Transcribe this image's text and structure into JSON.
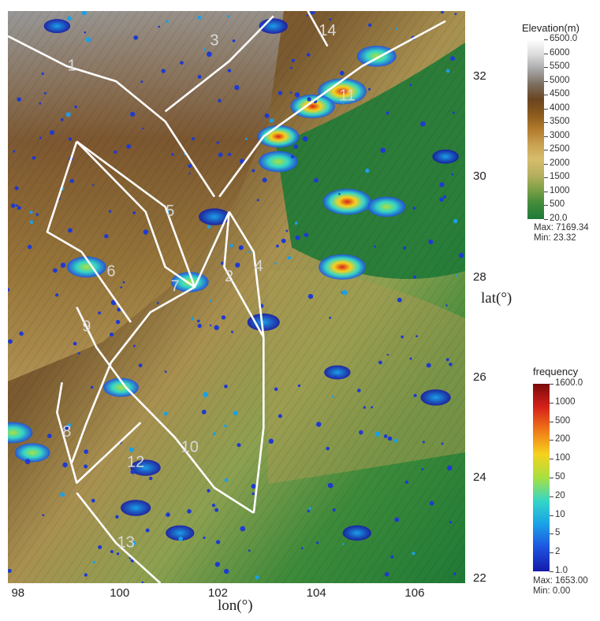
{
  "map": {
    "lon_range": [
      97.8,
      107.1
    ],
    "lat_range": [
      21.9,
      33.3
    ],
    "zones": [
      {
        "id": "1",
        "label": "1",
        "lon": 99.1,
        "lat": 32.2
      },
      {
        "id": "2",
        "label": "2",
        "lon": 102.3,
        "lat": 28.0
      },
      {
        "id": "3",
        "label": "3",
        "lon": 102.0,
        "lat": 32.7
      },
      {
        "id": "4",
        "label": "4",
        "lon": 102.9,
        "lat": 28.2
      },
      {
        "id": "5",
        "label": "5",
        "lon": 101.1,
        "lat": 29.3
      },
      {
        "id": "6",
        "label": "6",
        "lon": 99.9,
        "lat": 28.1
      },
      {
        "id": "7",
        "label": "7",
        "lon": 101.2,
        "lat": 27.8
      },
      {
        "id": "8",
        "label": "8",
        "lon": 99.0,
        "lat": 24.9
      },
      {
        "id": "9",
        "label": "9",
        "lon": 99.4,
        "lat": 27.0
      },
      {
        "id": "10",
        "label": "10",
        "lon": 101.5,
        "lat": 24.6
      },
      {
        "id": "11",
        "label": "11",
        "lon": 104.7,
        "lat": 31.6
      },
      {
        "id": "12",
        "label": "12",
        "lon": 100.4,
        "lat": 24.3
      },
      {
        "id": "13",
        "label": "13",
        "lon": 100.2,
        "lat": 22.7
      },
      {
        "id": "14",
        "label": "14",
        "lon": 104.3,
        "lat": 32.9
      }
    ],
    "faults": [
      [
        [
          97.8,
          32.8
        ],
        [
          99.0,
          32.2
        ],
        [
          100.0,
          31.9
        ],
        [
          101.0,
          31.1
        ],
        [
          102.0,
          29.6
        ]
      ],
      [
        [
          101.0,
          31.3
        ],
        [
          102.3,
          32.3
        ],
        [
          103.2,
          33.2
        ]
      ],
      [
        [
          103.9,
          33.3
        ],
        [
          104.3,
          32.6
        ]
      ],
      [
        [
          102.1,
          29.6
        ],
        [
          103.0,
          30.8
        ],
        [
          104.0,
          31.5
        ],
        [
          105.0,
          32.2
        ],
        [
          106.7,
          33.1
        ]
      ],
      [
        [
          99.2,
          30.7
        ],
        [
          98.6,
          28.9
        ],
        [
          99.3,
          28.5
        ],
        [
          100.3,
          27.1
        ]
      ],
      [
        [
          99.2,
          30.7
        ],
        [
          101.0,
          29.4
        ],
        [
          101.6,
          27.8
        ]
      ],
      [
        [
          99.2,
          30.7
        ],
        [
          100.6,
          29.3
        ],
        [
          101.0,
          28.2
        ],
        [
          101.6,
          27.8
        ]
      ],
      [
        [
          102.3,
          29.3
        ],
        [
          101.6,
          27.8
        ],
        [
          100.7,
          27.3
        ],
        [
          99.9,
          26.3
        ],
        [
          99.4,
          25.1
        ],
        [
          99.1,
          24.3
        ]
      ],
      [
        [
          102.3,
          29.3
        ],
        [
          102.2,
          28.2
        ],
        [
          103.0,
          26.8
        ],
        [
          103.0,
          25.0
        ],
        [
          102.8,
          23.3
        ]
      ],
      [
        [
          102.3,
          29.3
        ],
        [
          102.8,
          28.5
        ],
        [
          103.0,
          26.8
        ]
      ],
      [
        [
          99.2,
          27.4
        ],
        [
          99.6,
          26.6
        ],
        [
          100.2,
          25.8
        ],
        [
          101.2,
          24.8
        ],
        [
          102.0,
          23.8
        ],
        [
          102.8,
          23.3
        ]
      ],
      [
        [
          98.9,
          25.9
        ],
        [
          98.8,
          25.3
        ],
        [
          99.2,
          23.9
        ],
        [
          100.5,
          25.1
        ]
      ],
      [
        [
          99.2,
          23.7
        ],
        [
          100.0,
          22.7
        ],
        [
          100.9,
          21.9
        ]
      ]
    ],
    "seismic_clusters": [
      {
        "lon": 104.6,
        "lat": 31.7,
        "freq": 1000
      },
      {
        "lon": 104.0,
        "lat": 31.4,
        "freq": 500
      },
      {
        "lon": 105.3,
        "lat": 32.4,
        "freq": 200
      },
      {
        "lon": 103.3,
        "lat": 30.8,
        "freq": 300
      },
      {
        "lon": 103.3,
        "lat": 30.3,
        "freq": 200
      },
      {
        "lon": 104.7,
        "lat": 29.5,
        "freq": 1000
      },
      {
        "lon": 104.6,
        "lat": 28.2,
        "freq": 800
      },
      {
        "lon": 105.5,
        "lat": 29.4,
        "freq": 150
      },
      {
        "lon": 99.4,
        "lat": 28.2,
        "freq": 200
      },
      {
        "lon": 101.5,
        "lat": 27.9,
        "freq": 150
      },
      {
        "lon": 100.1,
        "lat": 25.8,
        "freq": 100
      },
      {
        "lon": 97.9,
        "lat": 24.9,
        "freq": 200
      },
      {
        "lon": 98.3,
        "lat": 24.5,
        "freq": 100
      },
      {
        "lon": 103.0,
        "lat": 27.1,
        "freq": 60
      },
      {
        "lon": 102.0,
        "lat": 29.2,
        "freq": 50
      },
      {
        "lon": 100.6,
        "lat": 24.2,
        "freq": 40
      },
      {
        "lon": 104.9,
        "lat": 22.9,
        "freq": 30
      },
      {
        "lon": 106.5,
        "lat": 25.6,
        "freq": 40
      },
      {
        "lon": 100.4,
        "lat": 23.4,
        "freq": 40
      },
      {
        "lon": 101.3,
        "lat": 22.9,
        "freq": 30
      },
      {
        "lon": 103.2,
        "lat": 33.0,
        "freq": 30
      },
      {
        "lon": 98.8,
        "lat": 33.0,
        "freq": 20
      },
      {
        "lon": 106.7,
        "lat": 30.4,
        "freq": 20
      },
      {
        "lon": 104.5,
        "lat": 26.1,
        "freq": 20
      }
    ]
  },
  "axes": {
    "xlabel": "lon(°)",
    "ylabel": "lat(°)",
    "x_ticks": [
      "98",
      "100",
      "102",
      "104",
      "106"
    ],
    "x_tick_values": [
      98,
      100,
      102,
      104,
      106
    ],
    "y_ticks": [
      "32",
      "30",
      "28",
      "26",
      "24",
      "22"
    ],
    "y_tick_values": [
      32,
      30,
      28,
      26,
      24,
      22
    ]
  },
  "elevation_legend": {
    "title": "Elevation(m)",
    "ticks": [
      "6500.0",
      "6000",
      "5500",
      "5000",
      "4500",
      "4000",
      "3500",
      "3000",
      "2500",
      "2000",
      "1500",
      "1000",
      "500",
      "20.0"
    ],
    "max_text": "Max: 7169.34",
    "min_text": "Min: 23.32",
    "colors": [
      "#ffffff",
      "#dcdcdc",
      "#a8a8a8",
      "#7c6e60",
      "#6a4420",
      "#8a5a1e",
      "#b27a2c",
      "#c8a050",
      "#d6bd6c",
      "#b8b060",
      "#7fa048",
      "#3f8a3a",
      "#1f7a3a"
    ]
  },
  "frequency_legend": {
    "title": "frequency",
    "ticks": [
      "1600.0",
      "1000",
      "500",
      "200",
      "100",
      "50",
      "20",
      "10",
      "5",
      "2",
      "1.0"
    ],
    "max_text": "Max: 1653.00",
    "min_text": "Min: 0.00",
    "colors": [
      "#7a0a0a",
      "#d6221a",
      "#f07a18",
      "#f5d21e",
      "#a8e040",
      "#34d6c6",
      "#1aa0e8",
      "#1e52e0",
      "#141aa8"
    ]
  }
}
